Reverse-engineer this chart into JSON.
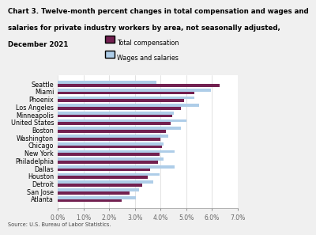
{
  "title_line1": "Chart 3. Twelve-month percent changes in total compensation and wages and",
  "title_line2": "salaries for private industry workers by area, not seasonally adjusted,",
  "title_line3": "December 2021",
  "source": "Source: U.S. Bureau of Labor Statistics.",
  "legend": [
    "Total compensation",
    "Wages and salaries"
  ],
  "cities": [
    "Seattle",
    "Miami",
    "Phoenix",
    "Los Angeles",
    "Minneapolis",
    "United States",
    "Boston",
    "Washington",
    "Chicago",
    "New York",
    "Philadelphia",
    "Dallas",
    "Houston",
    "Detroit",
    "San Jose",
    "Atlanta"
  ],
  "total_compensation": [
    6.3,
    5.3,
    4.9,
    4.8,
    4.45,
    4.4,
    4.2,
    4.0,
    4.05,
    3.95,
    3.9,
    3.6,
    3.5,
    3.3,
    2.8,
    2.5
  ],
  "wages_salaries": [
    3.85,
    5.95,
    5.3,
    5.5,
    4.5,
    5.0,
    4.8,
    4.3,
    4.1,
    4.55,
    4.1,
    4.55,
    3.95,
    3.7,
    3.15,
    3.05
  ],
  "color_total": "#722050",
  "color_wages": "#aecde8",
  "xlim": [
    0,
    7.0
  ],
  "xticks": [
    0.0,
    1.0,
    2.0,
    3.0,
    4.0,
    5.0,
    6.0,
    7.0
  ],
  "xtick_labels": [
    "0.0%",
    "1.0%",
    "2.0%",
    "3.0%",
    "4.0%",
    "5.0%",
    "6.0%",
    "7.0%"
  ],
  "bar_height": 0.38,
  "title_fontsize": 6.2,
  "label_fontsize": 5.8,
  "tick_fontsize": 5.5,
  "legend_fontsize": 5.8,
  "source_fontsize": 4.8,
  "plot_bg": "#ffffff",
  "fig_bg": "#f0f0f0"
}
